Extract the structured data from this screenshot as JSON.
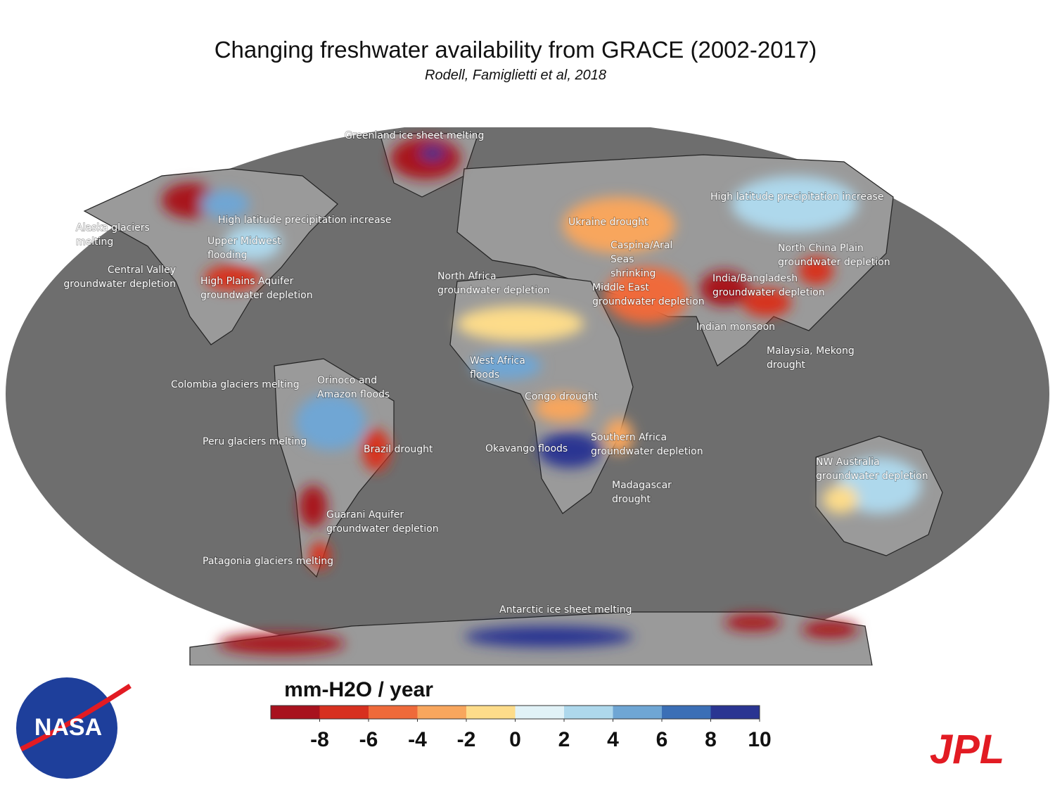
{
  "title": "Changing freshwater availability from GRACE (2002-2017)",
  "subtitle": "Rodell, Famiglietti et al, 2018",
  "annotations": [
    [
      "Greenland ice sheet melting"
    ],
    [
      "High latitude precipitation increase"
    ],
    [
      "High latitude precipitation increase"
    ],
    [
      "Alaska glaciers",
      "melting"
    ],
    [
      "Ukraine drought"
    ],
    [
      "Upper Midwest",
      "flooding"
    ],
    [
      "Caspina/Aral",
      "Seas",
      "shrinking"
    ],
    [
      "North China Plain",
      "groundwater depletion"
    ],
    [
      "Central Valley",
      "groundwater depletion"
    ],
    [
      "North Africa",
      "groundwater depletion"
    ],
    [
      "High Plains Aquifer",
      "groundwater depletion"
    ],
    [
      "India/Bangladesh",
      "groundwater depletion"
    ],
    [
      "Middle East",
      "groundwater depletion"
    ],
    [
      "Indian monsoon"
    ],
    [
      "Malaysia, Mekong",
      "drought"
    ],
    [
      "West Africa",
      "floods"
    ],
    [
      "Orinoco and",
      "Amazon floods"
    ],
    [
      "Colombia glaciers melting"
    ],
    [
      "Congo drought"
    ],
    [
      "Southern Africa",
      "groundwater depletion"
    ],
    [
      "Peru glaciers melting"
    ],
    [
      "Okavango floods"
    ],
    [
      "Brazil drought"
    ],
    [
      "NW Australia",
      "groundwater depletion"
    ],
    [
      "Madagascar",
      "drought"
    ],
    [
      "Guarani Aquifer",
      "groundwater depletion"
    ],
    [
      "Patagonia glaciers melting"
    ],
    [
      "Antarctic ice sheet melting"
    ]
  ],
  "colorbar": {
    "label": "mm-H2O / year",
    "range": [
      -10,
      10
    ],
    "ticks": [
      -8,
      -6,
      -4,
      -2,
      0,
      2,
      4,
      6,
      8,
      10
    ],
    "colors": [
      "#a8121e",
      "#d7301f",
      "#ef6a3a",
      "#f8a65d",
      "#fddc8a",
      "#e1f2f7",
      "#aed8ec",
      "#6fa6d4",
      "#3b6fb6",
      "#2a3592"
    ]
  },
  "logos": {
    "left": "NASA",
    "right": "JPL"
  }
}
